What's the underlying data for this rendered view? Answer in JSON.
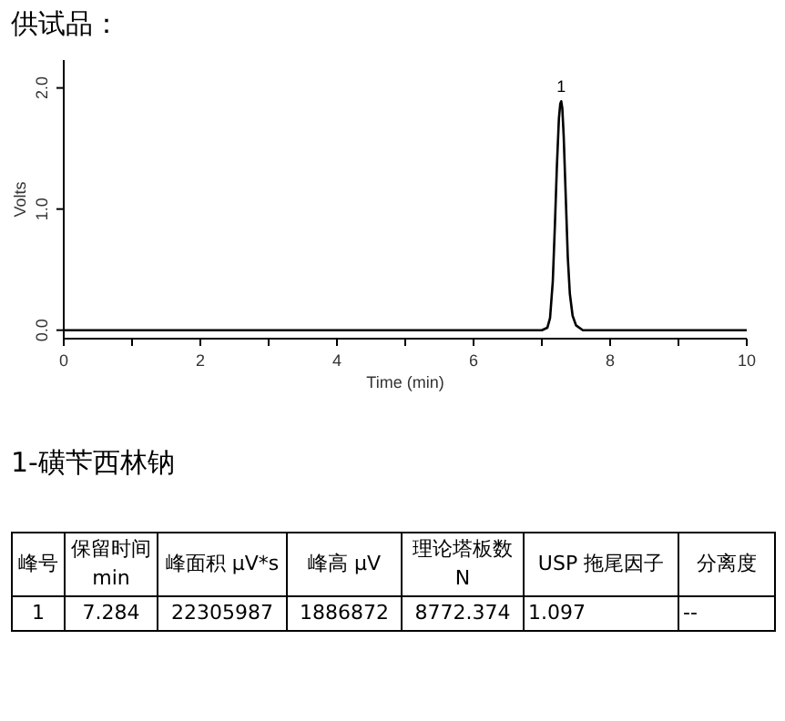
{
  "chart_data": {
    "type": "line",
    "title": "供试品：",
    "xlabel": "Time (min)",
    "ylabel": "Volts",
    "xlim": [
      0,
      10
    ],
    "xticks": [
      0,
      {
        "value": 1,
        "label": null
      },
      2,
      {
        "value": 3,
        "label": null
      },
      4,
      {
        "value": 5,
        "label": null
      },
      6,
      {
        "value": 7,
        "label": null
      },
      8,
      {
        "value": 9,
        "label": null
      },
      10
    ],
    "ylim": [
      -0.07,
      2.23
    ],
    "yticks": [
      {
        "value": 0,
        "label": "0.0"
      },
      {
        "value": 1,
        "label": "1.0"
      },
      {
        "value": 2,
        "label": "2.0"
      }
    ],
    "grid": false,
    "marker": "none",
    "line_style": "solid",
    "series": [
      {
        "color": "#000000",
        "x": [
          0,
          7.0,
          7.08,
          7.12,
          7.16,
          7.19,
          7.22,
          7.25,
          7.27,
          7.284,
          7.3,
          7.32,
          7.35,
          7.38,
          7.41,
          7.45,
          7.5,
          7.6,
          10
        ],
        "values": [
          0,
          0,
          0.02,
          0.1,
          0.4,
          0.85,
          1.35,
          1.75,
          1.87,
          1.89,
          1.83,
          1.6,
          1.1,
          0.6,
          0.3,
          0.12,
          0.04,
          0,
          0
        ]
      }
    ],
    "annotations": [
      {
        "text": "1",
        "x": 7.284,
        "y": 1.89
      },
      "1-磺苄西林钠",
      "峰号",
      "保留时间 min",
      "峰面积 μV*s",
      "峰高 μV",
      "理论塔板数 N",
      "USP 拖尾因子",
      "分离度",
      "1",
      "7.284",
      "22305987",
      "1886872",
      "8772.374",
      "1.097",
      "--"
    ]
  }
}
